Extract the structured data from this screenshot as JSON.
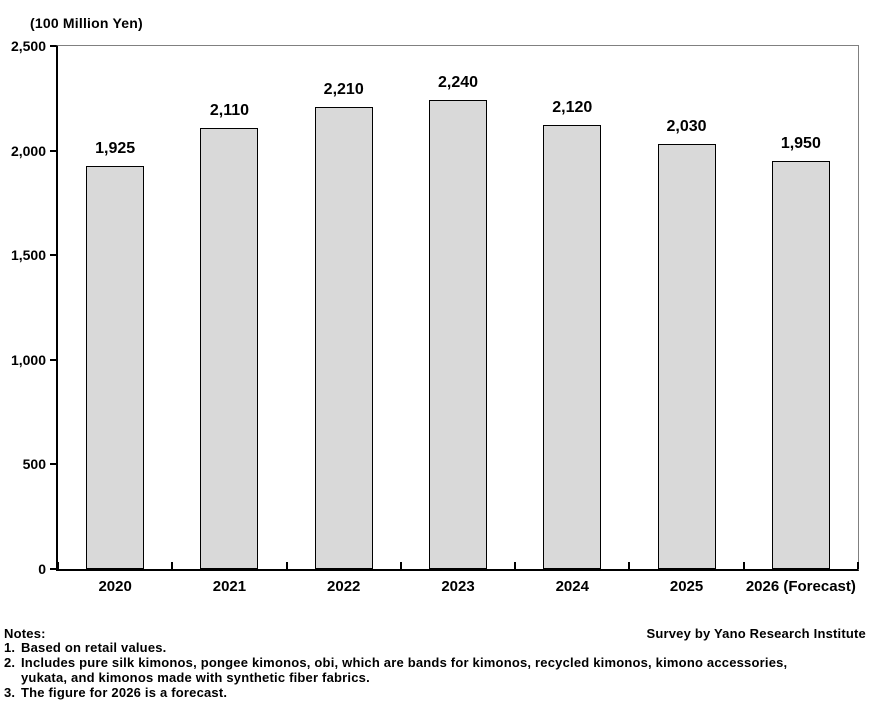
{
  "chart_data": {
    "type": "bar",
    "title": "",
    "unit_label": "(100 Million Yen)",
    "categories": [
      "2020",
      "2021",
      "2022",
      "2023",
      "2024",
      "2025",
      "2026 (Forecast)"
    ],
    "values": [
      1925,
      2110,
      2210,
      2240,
      2120,
      2030,
      1950
    ],
    "value_labels": [
      "1,925",
      "2,110",
      "2,210",
      "2,240",
      "2,120",
      "2,030",
      "1,950"
    ],
    "xlabel": "",
    "ylabel": "(100 Million Yen)",
    "ylim": [
      0,
      2500
    ],
    "ytick_interval": 500,
    "yticks": [
      "0",
      "500",
      "1,000",
      "1,500",
      "2,000",
      "2,500"
    ],
    "grid": false,
    "legend": false,
    "bar_fill": "#d9d9d9",
    "bar_border": "#000000",
    "axis_color": "#000000",
    "plot_border": "#808080"
  },
  "notes": {
    "heading": "Notes:",
    "attribution": "Survey by Yano Research Institute",
    "items": [
      {
        "num": "1.",
        "text": "Based on retail values."
      },
      {
        "num": "2.",
        "text": "Includes pure silk kimonos, pongee kimonos, obi, which are bands for kimonos, recycled kimonos, kimono accessories, yukata, and kimonos made with synthetic fiber fabrics."
      },
      {
        "num": "3.",
        "text": "The figure for 2026 is a forecast."
      }
    ]
  }
}
